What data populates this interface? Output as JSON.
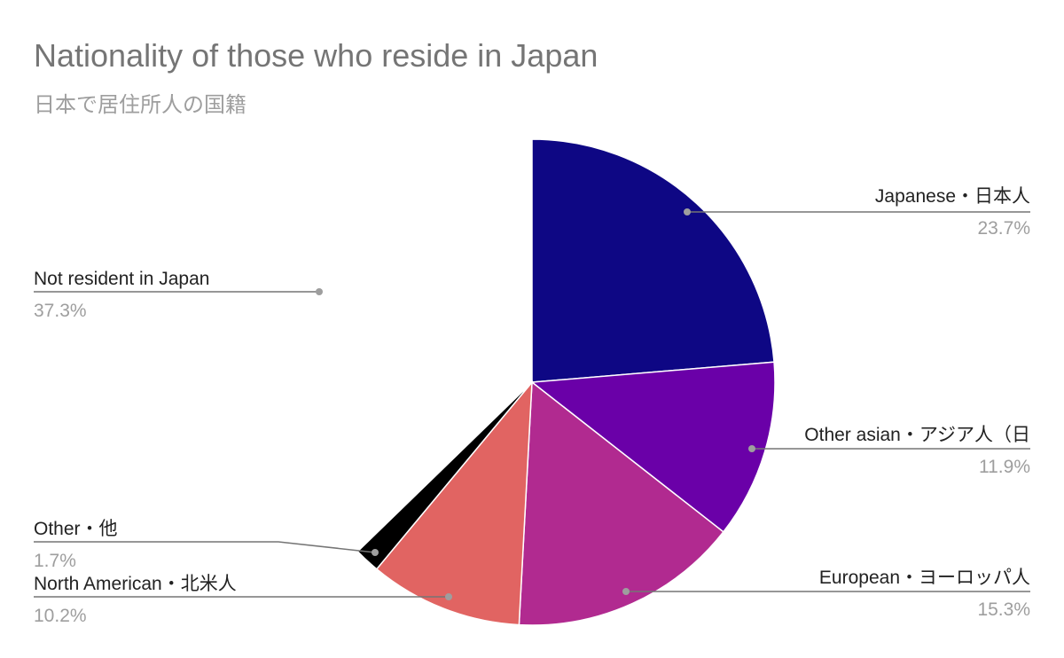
{
  "chart_data": {
    "type": "pie",
    "title": "Nationality of those who reside in Japan",
    "subtitle": "日本で居住所人の国籍",
    "slices": [
      {
        "label": "Japanese・日本人",
        "value": 23.7,
        "display": "23.7%",
        "color": "#0e0784"
      },
      {
        "label": "Other asian・アジア人（日",
        "value": 11.9,
        "display": "11.9%",
        "color": "#6a00a8"
      },
      {
        "label": "European・ヨーロッパ人",
        "value": 15.3,
        "display": "15.3%",
        "color": "#b12a90"
      },
      {
        "label": "North American・北米人",
        "value": 10.2,
        "display": "10.2%",
        "color": "#e16462"
      },
      {
        "label": "Other・他",
        "value": 1.7,
        "display": "1.7%",
        "color": "#000000"
      },
      {
        "label": "Not resident in Japan",
        "value": 37.3,
        "display": "37.3%",
        "color": "#ffffff"
      }
    ],
    "legend": "leader-labels"
  }
}
